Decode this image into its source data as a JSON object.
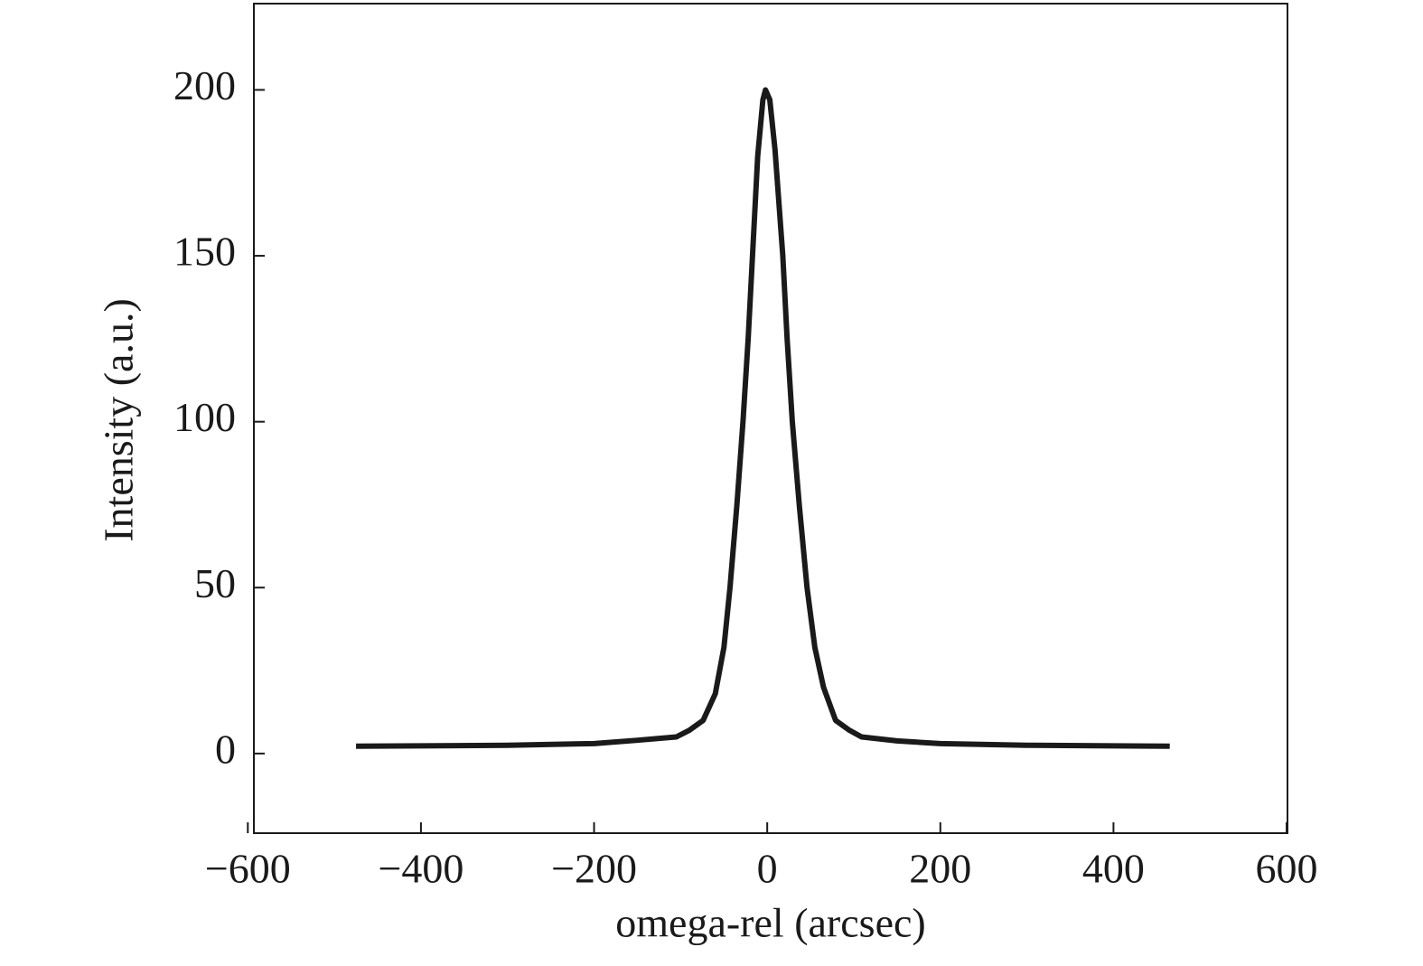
{
  "chart_data": {
    "type": "line",
    "xlabel": "omega-rel (arcsec)",
    "ylabel": "Intensity (a.u.)",
    "xlim": [
      -593,
      601
    ],
    "ylim": [
      -24,
      226
    ],
    "xticks": [
      {
        "value": -600,
        "label": "−600"
      },
      {
        "value": -400,
        "label": "−400"
      },
      {
        "value": -200,
        "label": "−200"
      },
      0,
      200,
      400,
      600
    ],
    "yticks": [
      0,
      50,
      100,
      150,
      200
    ],
    "series": [
      {
        "color": "#1a1a1a",
        "x": [
          -475,
          -400,
          -300,
          -200,
          -150,
          -105,
          -90,
          -74,
          -60,
          -50,
          -43,
          -35,
          -28,
          -22,
          -17,
          -11,
          -5,
          -2,
          3,
          9,
          18,
          23,
          29,
          37,
          46,
          55,
          65,
          79,
          95,
          109,
          150,
          200,
          300,
          400,
          465
        ],
        "values": [
          2.2,
          2.3,
          2.5,
          3,
          4,
          5,
          7,
          10,
          18,
          32,
          50,
          75,
          100,
          125,
          150,
          180,
          197,
          200,
          197,
          182,
          150,
          125,
          100,
          75,
          50,
          32,
          20,
          10,
          7,
          5,
          3.8,
          3,
          2.5,
          2.3,
          2.2
        ]
      }
    ]
  }
}
